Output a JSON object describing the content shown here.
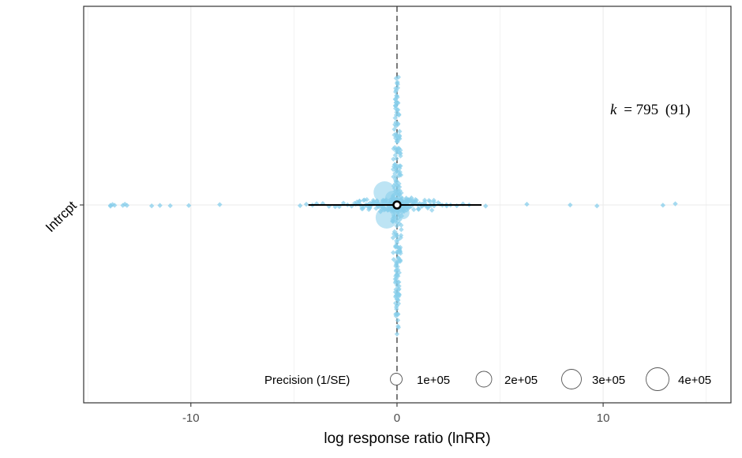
{
  "chart_data": {
    "type": "scatter",
    "subtype": "orchard-plot",
    "xlabel": "log response ratio (lnRR)",
    "xlim": [
      -15.2,
      16.2
    ],
    "x_ticks": [
      -10,
      0,
      10
    ],
    "x_tick_labels": [
      "-10",
      "0",
      "10"
    ],
    "y_categories": [
      "Intrcpt"
    ],
    "reference_line_x": 0,
    "grid": true,
    "estimate": {
      "group": "Intrcpt",
      "mean": 0.0,
      "pi_lower": -4.3,
      "pi_upper": 4.1
    },
    "annotation": {
      "k_symbol": "k",
      "k_text": "= 795",
      "groups_text": "(91)"
    },
    "points_color": "#87CEEB",
    "points_x": [
      -13.9,
      -13.8,
      -13.7,
      -13.9,
      -13.3,
      -13.1,
      -13.2,
      -11.9,
      -11.5,
      -11.0,
      -10.1,
      -8.6,
      -4.7,
      -4.4,
      -4.1,
      -3.9,
      -3.6,
      -3.3,
      -3.0,
      -2.8,
      -2.6,
      -2.4,
      -2.2,
      -2.0,
      -1.9,
      -1.8,
      -1.7,
      -1.6,
      -1.5,
      -1.4,
      -1.3,
      -1.2,
      -1.1,
      -1.0,
      -0.9,
      -0.85,
      -0.8,
      -0.7,
      -0.6,
      -0.55,
      -0.5,
      -0.45,
      -0.4,
      -0.35,
      -0.3,
      -0.25,
      -0.2,
      -0.15,
      -0.1,
      -0.05,
      0.0,
      0.05,
      0.1,
      0.15,
      0.2,
      0.25,
      0.3,
      0.35,
      0.4,
      0.45,
      0.5,
      0.55,
      0.6,
      0.7,
      0.8,
      0.9,
      1.0,
      1.1,
      1.2,
      1.3,
      1.4,
      1.5,
      1.6,
      1.8,
      2.0,
      2.2,
      2.4,
      2.6,
      2.9,
      3.2,
      3.5,
      4.3,
      6.3,
      8.4,
      9.7,
      12.9,
      13.5
    ],
    "legend": {
      "title": "Precision (1/SE)",
      "labels": [
        "1e+05",
        "2e+05",
        "3e+05",
        "4e+05"
      ],
      "values": [
        100000,
        200000,
        300000,
        400000
      ],
      "position": "bottom-right"
    }
  }
}
